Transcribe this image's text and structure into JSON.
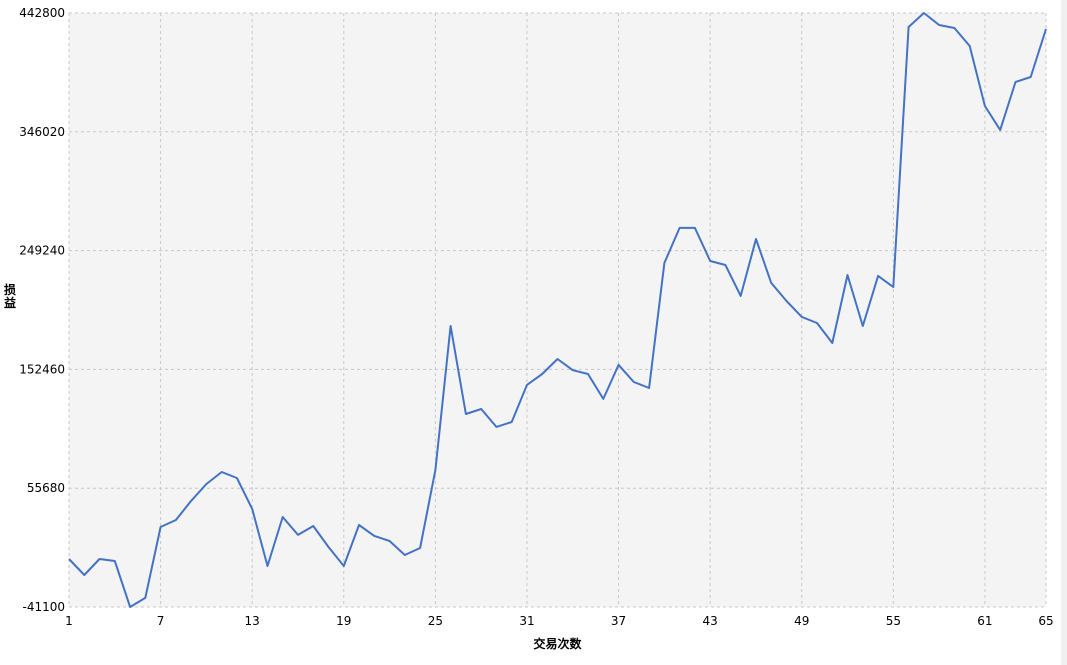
{
  "chart_data": {
    "type": "line",
    "title": "",
    "xlabel": "交易次数",
    "ylabel": "损益",
    "xlim": [
      1,
      65
    ],
    "ylim": [
      -41100,
      442800
    ],
    "x_ticks": [
      1,
      7,
      13,
      19,
      25,
      31,
      37,
      43,
      49,
      55,
      61,
      65
    ],
    "y_ticks": [
      -41100,
      55680,
      152460,
      249240,
      346020,
      442800
    ],
    "grid": true,
    "colors": {
      "line": "#4472c4",
      "plot_bg": "#f4f4f4",
      "grid": "#c8c8c8"
    },
    "series": [
      {
        "x": [
          1,
          2,
          3,
          4,
          5,
          6,
          7,
          8,
          9,
          10,
          11,
          12,
          13,
          14,
          15,
          16,
          17,
          18,
          19,
          20,
          21,
          22,
          23,
          24,
          25,
          26,
          27,
          28,
          29,
          30,
          31,
          32,
          33,
          34,
          35,
          36,
          37,
          38,
          39,
          40,
          41,
          42,
          43,
          44,
          45,
          46,
          47,
          48,
          49,
          50,
          51,
          52,
          53,
          54,
          55,
          56,
          57,
          58,
          59,
          60,
          61,
          62,
          63,
          64,
          65
        ],
        "values": [
          -2000,
          -15000,
          -2000,
          -3600,
          -41100,
          -33700,
          24100,
          29800,
          45300,
          59100,
          68900,
          64000,
          38800,
          -7700,
          32200,
          17600,
          24900,
          7800,
          -7700,
          25700,
          16800,
          12700,
          1300,
          7000,
          70500,
          187800,
          116100,
          120200,
          105600,
          109600,
          139800,
          148700,
          160900,
          151800,
          148700,
          128400,
          156100,
          142200,
          137300,
          239200,
          267700,
          267700,
          240800,
          237500,
          212300,
          258700,
          222900,
          208200,
          195200,
          190300,
          174000,
          229400,
          187800,
          228600,
          219600,
          431400,
          442800,
          433000,
          430600,
          415900,
          367000,
          347500,
          386600,
          390700,
          429800
        ]
      }
    ]
  }
}
